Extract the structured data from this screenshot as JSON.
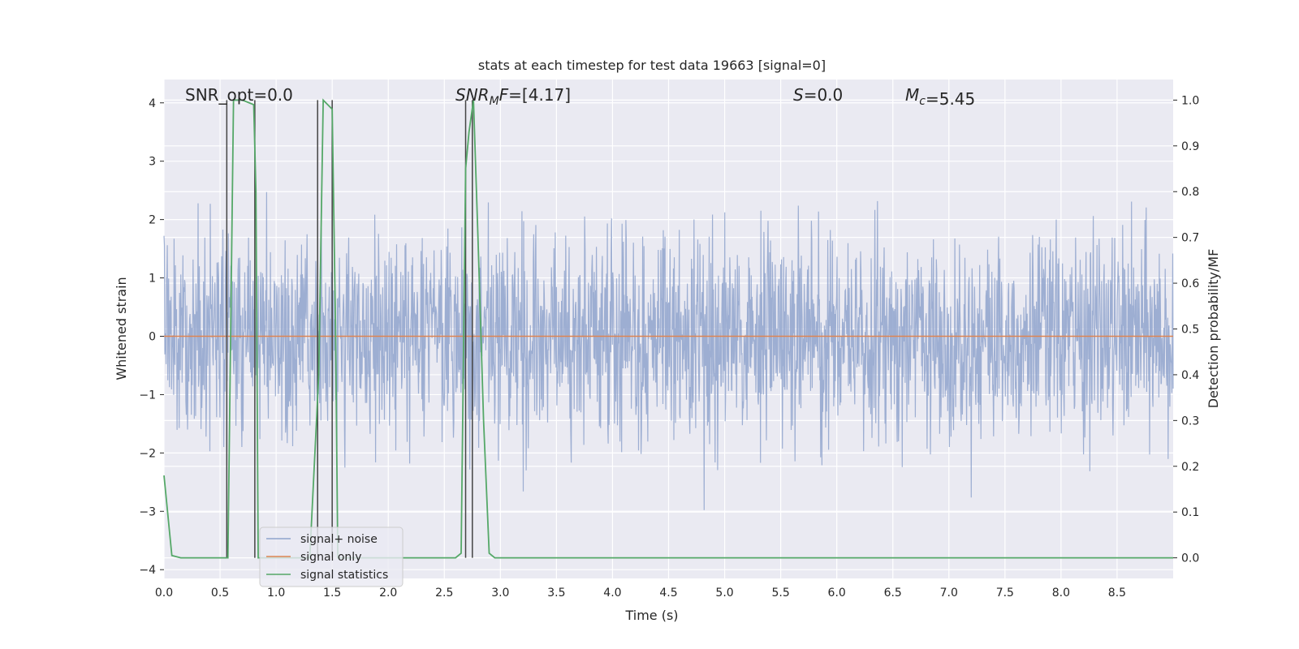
{
  "chart_data": {
    "type": "line",
    "title": "stats at each timestep for test data 19663 [signal=0]",
    "xlabel": "Time (s)",
    "ylabel": "Whitened strain",
    "y2label": "Detection probability/MF",
    "xlim": [
      0.0,
      9.0
    ],
    "ylim": [
      -4.15,
      4.4
    ],
    "y2lim": [
      -0.045,
      1.045
    ],
    "x_ticks": [
      0.0,
      0.5,
      1.0,
      1.5,
      2.0,
      2.5,
      3.0,
      3.5,
      4.0,
      4.5,
      5.0,
      5.5,
      6.0,
      6.5,
      7.0,
      7.5,
      8.0,
      8.5
    ],
    "x_tick_labels": [
      "0.0",
      "0.5",
      "1.0",
      "1.5",
      "2.0",
      "2.5",
      "3.0",
      "3.5",
      "4.0",
      "4.5",
      "5.0",
      "5.5",
      "6.0",
      "6.5",
      "7.0",
      "7.5",
      "8.0",
      "8.5"
    ],
    "y_ticks": [
      -4,
      -3,
      -2,
      -1,
      0,
      1,
      2,
      3,
      4
    ],
    "y_tick_labels": [
      "−4",
      "−3",
      "−2",
      "−1",
      "0",
      "1",
      "2",
      "3",
      "4"
    ],
    "y2_ticks": [
      0.0,
      0.1,
      0.2,
      0.3,
      0.4,
      0.5,
      0.6,
      0.7,
      0.8,
      0.9,
      1.0
    ],
    "y2_tick_labels": [
      "0.0",
      "0.1",
      "0.2",
      "0.3",
      "0.4",
      "0.5",
      "0.6",
      "0.7",
      "0.8",
      "0.9",
      "1.0"
    ],
    "grid": true,
    "legend_position": "bottom-left",
    "annotations": [
      {
        "text": "SNR_opt=0.0",
        "x": 0.2,
        "y": 4.0
      },
      {
        "text": "SNR_MF=[4.17]",
        "x": 2.6,
        "y": 4.0
      },
      {
        "text": "S=0.0",
        "x": 5.6,
        "y": 4.0
      },
      {
        "text": "M_c=5.45",
        "x": 6.6,
        "y": 4.0
      }
    ],
    "series": [
      {
        "name": "signal+ noise",
        "color": "#8fa3cc",
        "axis": "left",
        "noise_std": 0.85,
        "x_range": [
          0.0,
          9.0
        ],
        "n_samples": 2400
      },
      {
        "name": "signal only",
        "color": "#dd8452",
        "axis": "left",
        "x": [
          0.0,
          9.0
        ],
        "y": [
          0.0,
          0.0
        ]
      },
      {
        "name": "signal statistics",
        "color": "#55a868",
        "axis": "right",
        "x": [
          0.0,
          0.07,
          0.15,
          0.55,
          0.57,
          0.62,
          0.7,
          0.8,
          0.82,
          0.84,
          1.3,
          1.38,
          1.42,
          1.5,
          1.53,
          1.55,
          2.6,
          2.65,
          2.69,
          2.72,
          2.76,
          2.8,
          2.85,
          2.9,
          2.95,
          9.0
        ],
        "y": [
          0.18,
          0.005,
          0.0,
          0.0,
          0.0,
          1.0,
          1.0,
          0.99,
          0.8,
          0.0,
          0.0,
          0.4,
          1.0,
          0.98,
          0.5,
          0.0,
          0.0,
          0.01,
          0.85,
          0.93,
          1.0,
          0.7,
          0.3,
          0.01,
          0.0,
          0.0
        ]
      }
    ],
    "vertical_lines": [
      0.56,
      0.81,
      1.37,
      1.5,
      2.69,
      2.75
    ]
  }
}
